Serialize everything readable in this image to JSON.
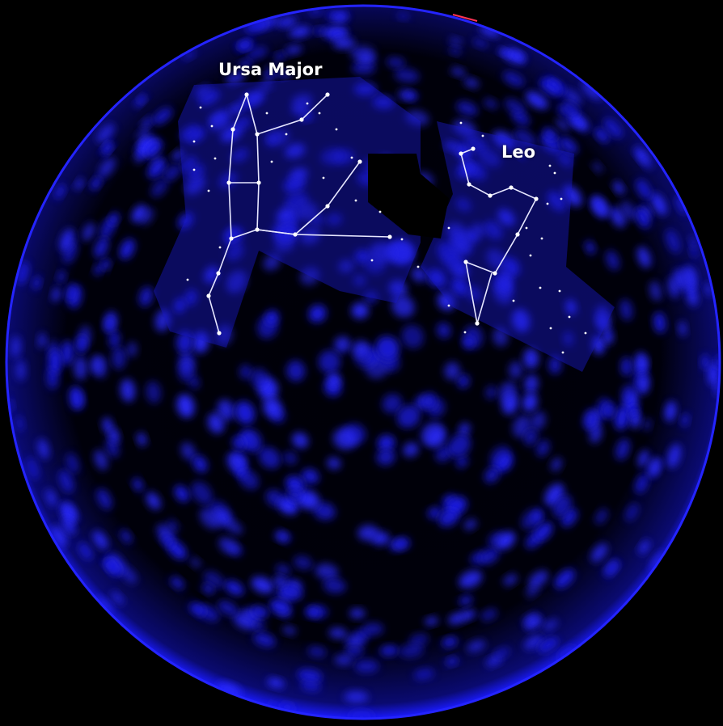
{
  "image": {
    "description_type": "sky-sphere",
    "background_color": "#000000",
    "sphere_color": "#1a1aff"
  },
  "constellations": [
    {
      "name": "Ursa Major",
      "color": "#ffffff"
    },
    {
      "name": "Leo",
      "color": "#ffffff"
    }
  ]
}
